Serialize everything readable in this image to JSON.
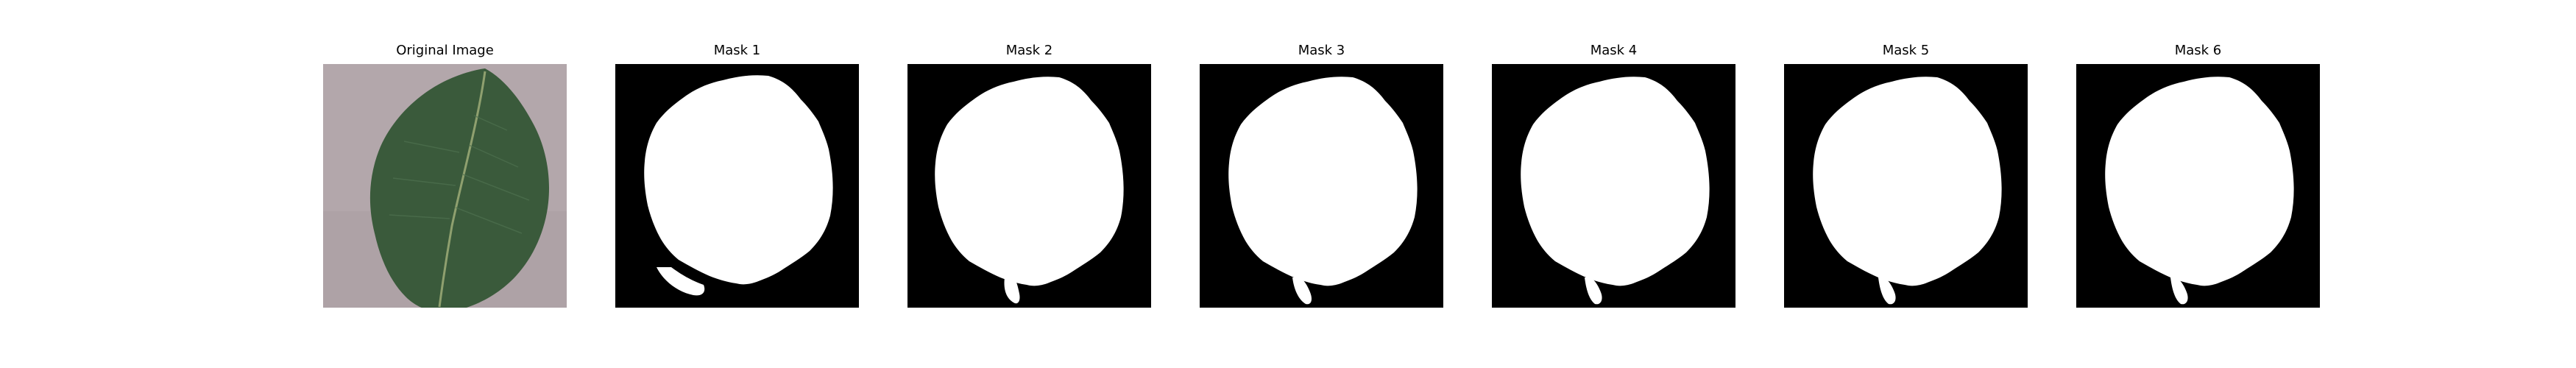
{
  "panels": [
    {
      "title": "Original Image",
      "kind": "photo"
    },
    {
      "title": "Mask 1",
      "kind": "mask"
    },
    {
      "title": "Mask 2",
      "kind": "mask"
    },
    {
      "title": "Mask 3",
      "kind": "mask"
    },
    {
      "title": "Mask 4",
      "kind": "mask"
    },
    {
      "title": "Mask 5",
      "kind": "mask"
    },
    {
      "title": "Mask 6",
      "kind": "mask"
    }
  ],
  "colors": {
    "background": "#ffffff",
    "mask_background": "#000000",
    "mask_foreground": "#ffffff",
    "photo_background": "#b3a7ab",
    "leaf": "#3a5a3b",
    "leaf_midrib": "#8fa06f"
  }
}
